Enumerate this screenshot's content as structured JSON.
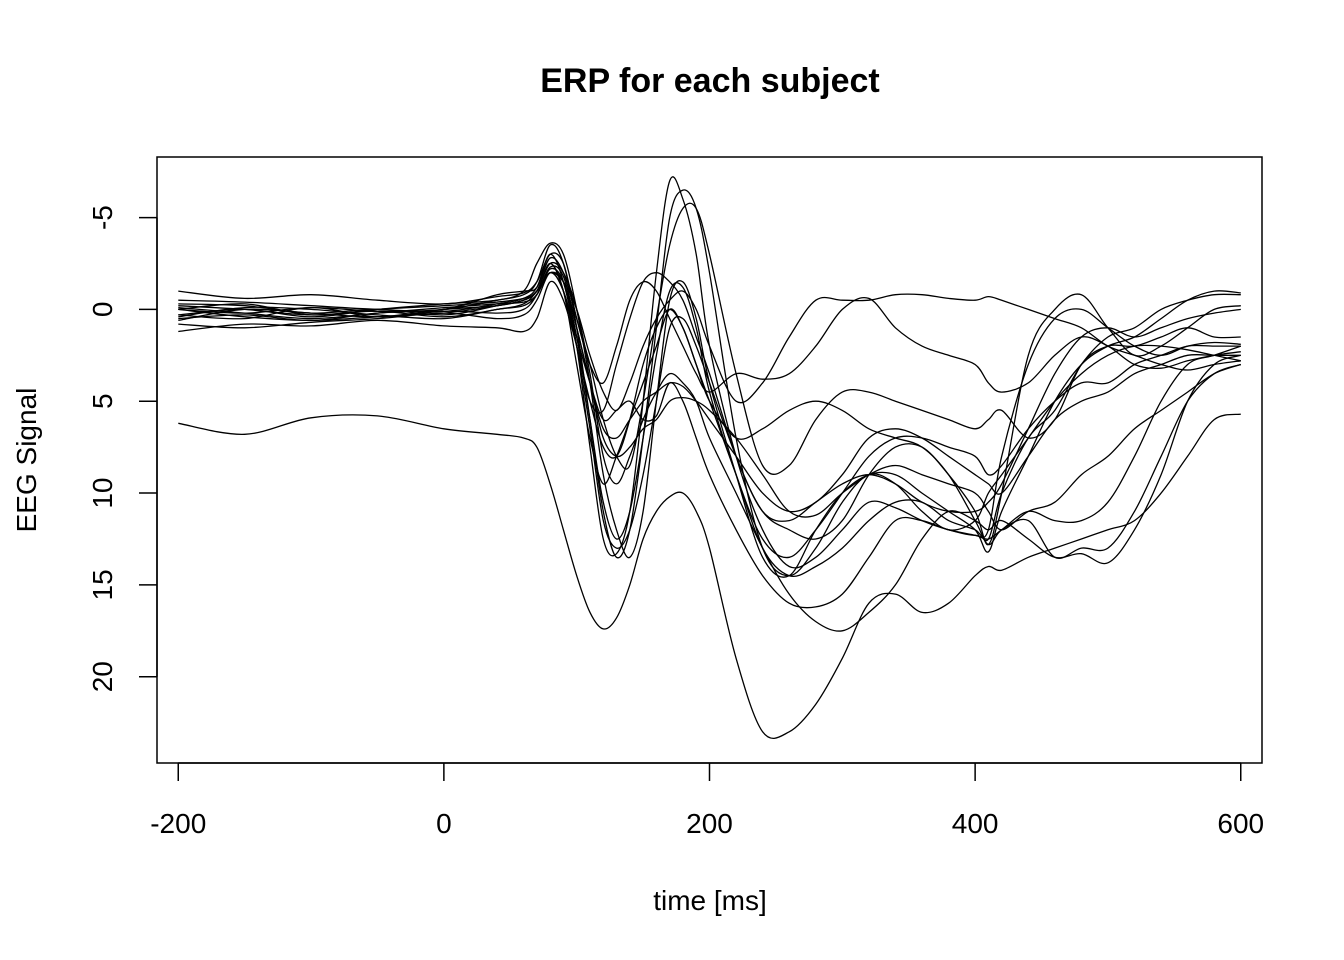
{
  "chart_data": {
    "type": "line",
    "title": "ERP for each subject",
    "xlabel": "time [ms]",
    "ylabel": "EEG Signal",
    "xlim": [
      -216,
      616
    ],
    "ylim": [
      -8.3,
      24.7
    ],
    "y_axis_reversed": true,
    "grid": false,
    "legend": "none",
    "line_color": "#000000",
    "x_ticks": [
      -200,
      0,
      200,
      400,
      600
    ],
    "y_ticks": [
      -5,
      0,
      5,
      10,
      15,
      20
    ],
    "x_tick_labels": [
      "-200",
      "0",
      "200",
      "400",
      "600"
    ],
    "y_tick_labels": [
      "-5",
      "0",
      "5",
      "10",
      "15",
      "20"
    ],
    "x": [
      -200,
      -150,
      -100,
      -50,
      0,
      40,
      60,
      70,
      80,
      90,
      100,
      110,
      120,
      130,
      140,
      150,
      160,
      170,
      180,
      190,
      200,
      220,
      240,
      260,
      280,
      300,
      320,
      340,
      360,
      380,
      400,
      410,
      420,
      440,
      460,
      480,
      500,
      520,
      540,
      560,
      580,
      600
    ],
    "series": [
      {
        "values": [
          6.2,
          6.8,
          5.9,
          5.8,
          6.5,
          6.8,
          7.0,
          7.5,
          9.5,
          12.0,
          14.5,
          16.5,
          17.4,
          16.8,
          15.0,
          12.5,
          11.0,
          10.2,
          10.0,
          11.0,
          13.0,
          19.0,
          23.0,
          23.0,
          21.5,
          19.0,
          16.0,
          15.5,
          16.5,
          16.0,
          14.5,
          14.0,
          14.2,
          13.5,
          13.0,
          12.5,
          12.0,
          11.5,
          10.0,
          8.0,
          6.0,
          5.7
        ]
      },
      {
        "values": [
          0.0,
          0.2,
          -0.1,
          0.1,
          0.0,
          -0.5,
          -0.8,
          -1.5,
          -3.5,
          -2.5,
          1.0,
          6.0,
          11.0,
          13.5,
          12.0,
          7.0,
          1.0,
          -5.0,
          -6.5,
          -5.5,
          -2.0,
          7.0,
          13.0,
          14.5,
          13.0,
          10.5,
          9.0,
          9.5,
          11.0,
          12.0,
          11.5,
          10.0,
          9.0,
          7.0,
          5.0,
          3.5,
          2.5,
          2.0,
          2.0,
          2.2,
          2.5,
          2.8
        ]
      },
      {
        "values": [
          -0.5,
          -0.4,
          -0.2,
          0.0,
          0.1,
          -0.3,
          -0.6,
          -1.2,
          -3.0,
          -1.5,
          2.0,
          7.5,
          12.5,
          13.3,
          11.0,
          5.0,
          -2.0,
          -7.0,
          -6.0,
          -3.0,
          2.0,
          8.0,
          12.0,
          14.0,
          13.5,
          12.0,
          10.5,
          10.8,
          11.5,
          12.0,
          12.3,
          12.0,
          8.0,
          3.0,
          0.5,
          0.0,
          1.0,
          2.0,
          2.5,
          2.0,
          1.8,
          1.9
        ]
      },
      {
        "values": [
          0.3,
          0.0,
          0.4,
          0.0,
          -0.3,
          -0.5,
          -1.0,
          -2.5,
          -3.6,
          -3.0,
          0.0,
          4.0,
          9.0,
          12.0,
          13.5,
          11.0,
          5.0,
          -0.5,
          -1.5,
          0.5,
          4.0,
          9.0,
          13.5,
          14.5,
          12.0,
          10.0,
          9.0,
          9.0,
          10.0,
          11.0,
          12.0,
          13.2,
          11.0,
          8.0,
          5.0,
          3.0,
          2.0,
          1.5,
          0.5,
          -0.5,
          -1.0,
          -0.9
        ]
      },
      {
        "values": [
          -0.3,
          -0.2,
          0.2,
          0.0,
          0.3,
          -0.2,
          -0.5,
          -1.0,
          -2.5,
          -1.0,
          3.0,
          7.0,
          9.5,
          8.0,
          6.0,
          4.0,
          2.0,
          0.0,
          1.0,
          3.0,
          5.0,
          9.0,
          13.0,
          14.5,
          14.0,
          13.0,
          11.5,
          10.5,
          10.5,
          11.5,
          12.0,
          12.5,
          10.0,
          7.0,
          5.5,
          3.0,
          1.5,
          1.0,
          0.0,
          -0.5,
          -0.8,
          -0.8
        ]
      },
      {
        "values": [
          0.5,
          0.3,
          0.6,
          0.2,
          0.0,
          -0.8,
          -1.0,
          -1.2,
          -2.8,
          -2.0,
          0.5,
          3.0,
          6.0,
          8.0,
          8.5,
          5.0,
          0.5,
          -3.5,
          -5.5,
          -5.5,
          -3.0,
          3.5,
          8.5,
          8.5,
          6.0,
          4.5,
          4.5,
          5.0,
          5.5,
          6.0,
          6.5,
          6.0,
          5.5,
          7.0,
          6.0,
          3.0,
          2.0,
          2.0,
          1.5,
          1.0,
          1.5,
          1.5
        ]
      },
      {
        "values": [
          0.0,
          0.4,
          0.6,
          0.4,
          0.2,
          -0.2,
          -0.5,
          -1.0,
          -2.0,
          -1.5,
          1.0,
          4.0,
          7.0,
          8.0,
          7.5,
          6.5,
          6.0,
          5.0,
          4.8,
          5.0,
          5.5,
          7.0,
          9.0,
          11.0,
          11.2,
          10.0,
          9.0,
          8.5,
          9.0,
          9.5,
          10.0,
          11.0,
          12.0,
          11.0,
          10.5,
          9.0,
          8.0,
          6.5,
          5.5,
          4.5,
          3.5,
          3.0
        ]
      },
      {
        "values": [
          -0.2,
          0.0,
          0.3,
          0.1,
          0.4,
          0.0,
          -0.3,
          -1.0,
          -2.0,
          -1.5,
          0.0,
          2.5,
          4.5,
          5.5,
          4.0,
          2.0,
          0.5,
          -0.5,
          -1.0,
          0.0,
          2.0,
          5.0,
          4.0,
          1.5,
          -0.5,
          -0.5,
          -0.5,
          -0.8,
          -0.8,
          -0.6,
          -0.5,
          -0.7,
          -0.5,
          0.0,
          0.5,
          1.0,
          2.0,
          2.5,
          3.0,
          3.3,
          3.0,
          2.8
        ]
      },
      {
        "values": [
          -1.0,
          -0.6,
          -0.8,
          -0.5,
          -0.3,
          -0.7,
          -0.9,
          -1.5,
          -3.0,
          -2.5,
          0.5,
          3.0,
          4.0,
          2.0,
          -0.5,
          -1.5,
          -1.0,
          0.5,
          2.0,
          3.5,
          4.5,
          3.5,
          3.8,
          3.5,
          2.0,
          0.0,
          -0.6,
          1.0,
          2.0,
          2.5,
          3.0,
          4.0,
          4.5,
          4.0,
          2.5,
          1.5,
          2.0,
          3.0,
          3.2,
          2.8,
          2.5,
          2.3
        ]
      },
      {
        "values": [
          0.6,
          0.0,
          0.2,
          0.4,
          0.0,
          -0.2,
          -0.5,
          -1.0,
          -2.5,
          -1.0,
          2.0,
          5.0,
          5.5,
          3.0,
          0.5,
          -1.5,
          -2.0,
          -1.5,
          -0.5,
          1.5,
          3.5,
          8.0,
          11.0,
          12.0,
          12.5,
          11.5,
          9.0,
          7.5,
          7.5,
          9.0,
          11.0,
          12.8,
          10.0,
          2.5,
          0.0,
          -0.8,
          1.0,
          2.5,
          2.0,
          1.0,
          0.0,
          -0.2
        ]
      },
      {
        "values": [
          0.8,
          1.0,
          0.7,
          0.5,
          0.2,
          0.5,
          0.3,
          -0.5,
          -2.0,
          -1.0,
          1.5,
          4.0,
          6.0,
          5.5,
          5.0,
          6.0,
          5.8,
          4.0,
          5.0,
          7.0,
          9.0,
          12.0,
          14.5,
          16.0,
          16.2,
          15.5,
          13.5,
          11.5,
          11.5,
          12.0,
          12.3,
          12.5,
          12.0,
          11.0,
          11.5,
          11.5,
          10.5,
          8.0,
          5.0,
          3.0,
          2.5,
          2.0
        ]
      },
      {
        "values": [
          1.2,
          0.8,
          0.9,
          0.6,
          0.9,
          1.0,
          1.2,
          0.5,
          -1.5,
          -0.5,
          2.0,
          5.0,
          7.5,
          8.0,
          6.0,
          3.0,
          1.0,
          0.0,
          1.0,
          3.0,
          5.0,
          7.0,
          6.5,
          5.5,
          5.0,
          5.5,
          6.5,
          7.0,
          7.5,
          9.0,
          11.5,
          12.8,
          12.0,
          11.5,
          13.5,
          13.0,
          13.0,
          11.0,
          8.0,
          5.0,
          3.5,
          3.0
        ]
      },
      {
        "values": [
          0.0,
          -0.3,
          0.3,
          0.0,
          -0.2,
          -0.4,
          -0.6,
          -1.0,
          -2.5,
          -2.0,
          0.0,
          3.5,
          8.0,
          9.5,
          8.0,
          6.0,
          4.5,
          3.5,
          4.0,
          5.0,
          7.0,
          10.0,
          13.0,
          15.5,
          17.0,
          17.5,
          16.5,
          15.0,
          12.5,
          11.0,
          11.5,
          12.0,
          11.5,
          12.5,
          13.5,
          13.3,
          13.8,
          12.0,
          9.0,
          5.0,
          3.0,
          2.5
        ]
      },
      {
        "values": [
          0.3,
          0.5,
          -0.1,
          0.4,
          0.1,
          0.2,
          0.0,
          -0.8,
          -2.3,
          -1.8,
          1.0,
          4.0,
          6.5,
          7.0,
          6.0,
          5.0,
          4.5,
          4.0,
          4.2,
          5.0,
          6.0,
          8.0,
          10.0,
          11.0,
          10.5,
          9.0,
          7.0,
          6.5,
          7.0,
          8.0,
          9.0,
          9.5,
          10.0,
          8.0,
          6.0,
          5.0,
          4.5,
          3.5,
          3.0,
          2.5,
          2.5,
          2.5
        ]
      },
      {
        "values": [
          -0.1,
          0.2,
          0.5,
          0.2,
          -0.1,
          -0.3,
          -0.4,
          -0.8,
          -2.2,
          -1.5,
          1.5,
          6.0,
          10.5,
          12.5,
          11.0,
          7.0,
          2.5,
          -1.0,
          -1.2,
          1.0,
          4.5,
          9.0,
          12.5,
          13.5,
          12.0,
          10.0,
          8.0,
          7.0,
          7.0,
          7.5,
          8.0,
          9.0,
          8.5,
          6.5,
          5.0,
          4.0,
          4.0,
          3.0,
          2.5,
          2.0,
          2.0,
          2.0
        ]
      },
      {
        "values": [
          0.4,
          -0.1,
          0.0,
          0.3,
          0.5,
          0.0,
          -0.2,
          -0.8,
          -2.0,
          -1.0,
          2.0,
          6.5,
          11.5,
          13.0,
          12.0,
          9.0,
          5.0,
          1.0,
          0.5,
          2.0,
          4.0,
          8.0,
          11.0,
          11.5,
          10.5,
          9.5,
          9.0,
          9.5,
          10.5,
          11.0,
          11.0,
          10.5,
          9.5,
          6.5,
          3.5,
          1.5,
          1.0,
          1.5,
          1.0,
          0.5,
          0.2,
          0.0
        ]
      }
    ]
  }
}
